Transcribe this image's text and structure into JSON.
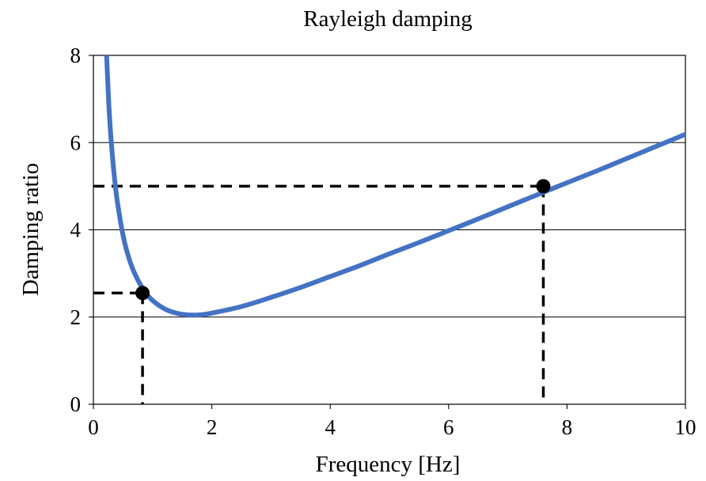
{
  "chart_data": {
    "type": "line",
    "title": "Rayleigh damping",
    "xlabel": "Frequency [Hz]",
    "ylabel": "Damping ratio",
    "xlim": [
      0,
      10
    ],
    "ylim": [
      0,
      8
    ],
    "xticks": [
      0,
      2,
      4,
      6,
      8,
      10
    ],
    "yticks": [
      0,
      2,
      4,
      6,
      8
    ],
    "grid": "horizontal",
    "series": [
      {
        "color": "#4472C4",
        "x": [
          0.18,
          0.22,
          0.26,
          0.3,
          0.35,
          0.4,
          0.5,
          0.6,
          0.7,
          0.85,
          1.0,
          1.2,
          1.4,
          1.6,
          1.8,
          2.0,
          2.5,
          3.0,
          3.5,
          4.0,
          4.5,
          5.0,
          5.5,
          6.0,
          6.5,
          7.0,
          7.6,
          8.0,
          8.5,
          9.0,
          9.5,
          10.0
        ],
        "y": [
          9.78,
          8.07,
          6.9,
          6.05,
          5.27,
          4.69,
          3.88,
          3.35,
          2.99,
          2.62,
          2.38,
          2.19,
          2.09,
          2.05,
          2.05,
          2.09,
          2.24,
          2.45,
          2.68,
          2.93,
          3.18,
          3.45,
          3.71,
          3.98,
          4.25,
          4.53,
          4.86,
          5.08,
          5.35,
          5.63,
          5.91,
          6.19
        ]
      }
    ],
    "markers": [
      {
        "x": 0.83,
        "y": 2.55
      },
      {
        "x": 7.6,
        "y": 5.0
      }
    ]
  }
}
